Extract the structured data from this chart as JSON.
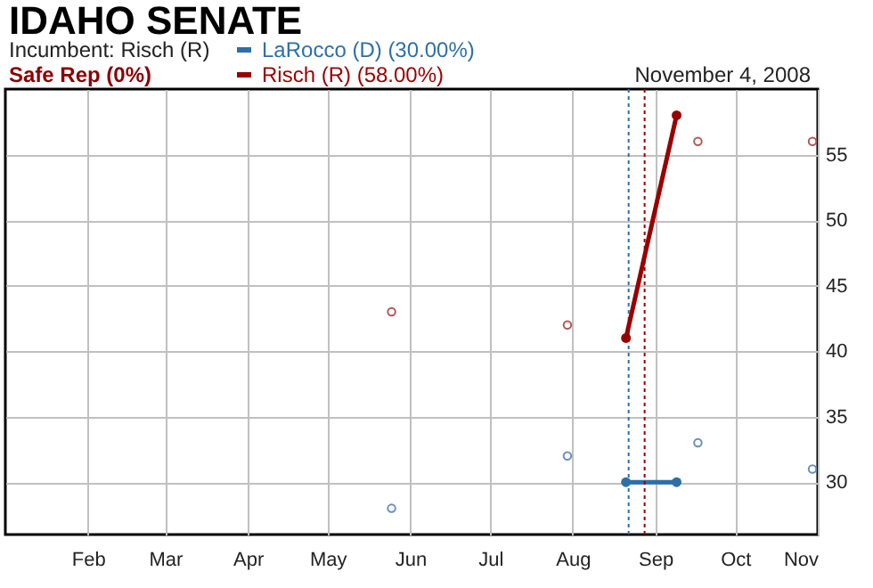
{
  "chart_data": {
    "type": "line",
    "title": "IDAHO SENATE",
    "annotations": [
      "Incumbent: Risch (R)",
      "Safe Rep (0%)",
      "November 4, 2008"
    ],
    "series": [
      {
        "name": "LaRocco (D) (30.00%)",
        "color": "#2e6fa8",
        "x": [
          "2008-08-21",
          "2008-09-09"
        ],
        "values": [
          30,
          30
        ]
      },
      {
        "name": "Risch (R) (58.00%)",
        "color": "#990000",
        "x": [
          "2008-08-21",
          "2008-09-09"
        ],
        "values": [
          41,
          58
        ]
      },
      {
        "type": "scatter",
        "color": "#6a8fb8",
        "x": [
          "2008-05-25",
          "2008-07-30",
          "2008-09-17",
          "2008-10-30"
        ],
        "values": [
          28,
          32,
          33,
          31
        ]
      },
      {
        "type": "scatter",
        "color": "#b05858",
        "x": [
          "2008-05-25",
          "2008-07-30",
          "2008-09-17",
          "2008-10-30"
        ],
        "values": [
          43,
          42,
          56,
          56
        ]
      }
    ],
    "xlim": [
      "2008-01-01",
      "2008-11-01"
    ],
    "xticks": [
      {
        "value": "2008-02-01",
        "label": "Feb"
      },
      {
        "value": "2008-03-01",
        "label": "Mar"
      },
      {
        "value": "2008-04-01",
        "label": "Apr"
      },
      {
        "value": "2008-05-01",
        "label": "May"
      },
      {
        "value": "2008-06-01",
        "label": "Jun"
      },
      {
        "value": "2008-07-01",
        "label": "Jul"
      },
      {
        "value": "2008-08-01",
        "label": "Aug"
      },
      {
        "value": "2008-09-01",
        "label": "Sep"
      },
      {
        "value": "2008-10-01",
        "label": "Oct"
      },
      {
        "value": "2008-11-01",
        "label": "Nov"
      }
    ],
    "ylim": [
      26,
      60
    ],
    "yticks": [
      30,
      35,
      40,
      45,
      50,
      55
    ],
    "ref_lines": [
      {
        "axis": "x",
        "value": "2008-08-22",
        "color": "#2e6fa8",
        "line_style": "dotted"
      },
      {
        "axis": "x",
        "value": "2008-08-28",
        "color": "#990000",
        "line_style": "dotted"
      }
    ],
    "grid": true,
    "legend": "top left",
    "marker": "circle",
    "line_style": "solid"
  }
}
